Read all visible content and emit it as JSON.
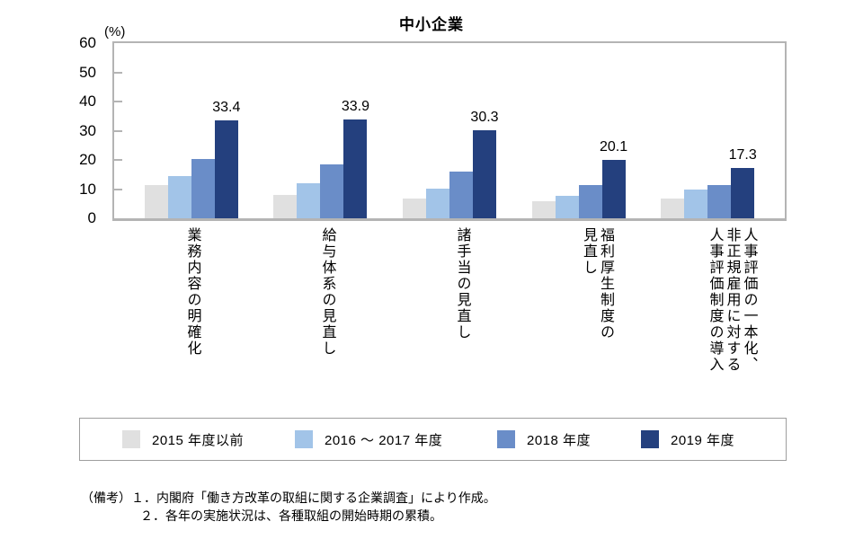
{
  "title": "中小企業",
  "chart_data": {
    "type": "bar",
    "title": "中小企業",
    "ylabel": "(%)",
    "xlabel": "",
    "ylim": [
      0,
      60
    ],
    "yticks": [
      0,
      10,
      20,
      30,
      40,
      50,
      60
    ],
    "grid": false,
    "legend_position": "bottom",
    "categories": [
      "業務内容の明確化",
      "給与体系の見直し",
      "諸手当の見直し",
      "福利厚生制度の\n見直し",
      "人事評価の一本化、\n非正規雇用に対する\n人事評価制度の導入"
    ],
    "series": [
      {
        "key": "series-2015",
        "name": "2015 年度以前",
        "color": "#e0e0e0",
        "values": [
          11.3,
          8.0,
          6.8,
          5.8,
          6.7
        ]
      },
      {
        "key": "series-2016-2017",
        "name": "2016 ～ 2017 年度",
        "color": "#a2c4e8",
        "values": [
          14.6,
          11.9,
          10.2,
          7.8,
          9.7
        ]
      },
      {
        "key": "series-2018",
        "name": "2018 年度",
        "color": "#6a8dc8",
        "values": [
          20.3,
          18.5,
          15.9,
          11.3,
          11.5
        ]
      },
      {
        "key": "series-2019",
        "name": "2019 年度",
        "color": "#24407e",
        "values": [
          33.4,
          33.9,
          30.3,
          20.1,
          17.3
        ],
        "data_labels": [
          "33.4",
          "33.9",
          "30.3",
          "20.1",
          "17.3"
        ]
      }
    ]
  },
  "notes": {
    "prefix": "（備考）",
    "line1": "１．内閣府「働き方改革の取組に関する企業調査」により作成。",
    "line2": "２．各年の実施状況は、各種取組の開始時期の累積。"
  }
}
